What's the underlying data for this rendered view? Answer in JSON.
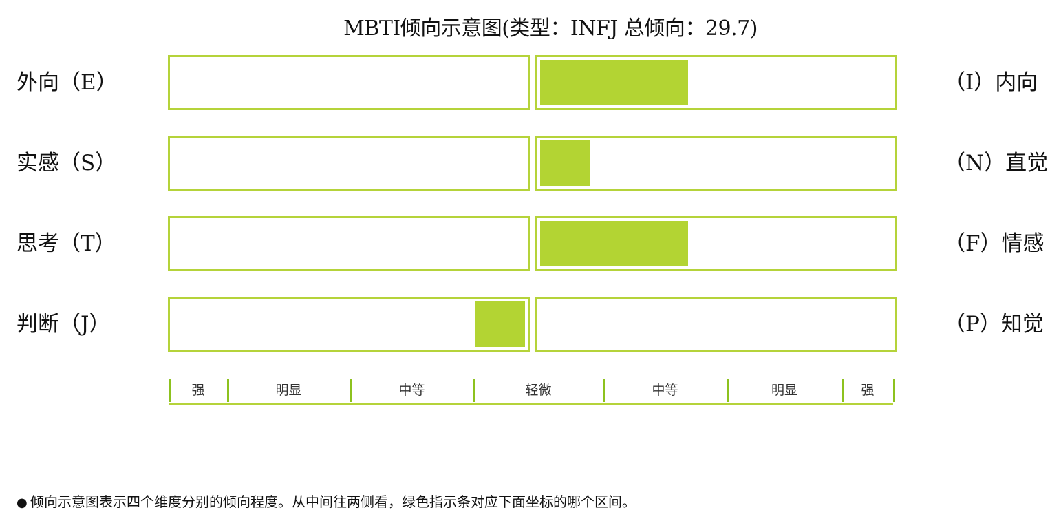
{
  "chart_data": {
    "type": "bar",
    "title": "MBTI倾向示意图(类型：INFJ 总倾向：29.7)",
    "dimensions": [
      {
        "left_label": "外向（E）",
        "right_label": "（I）内向",
        "side": "right",
        "value": 42
      },
      {
        "left_label": "实感（S）",
        "right_label": "（N）直觉",
        "side": "right",
        "value": 14
      },
      {
        "left_label": "思考（T）",
        "right_label": "（F）情感",
        "side": "right",
        "value": 42
      },
      {
        "left_label": "判断（J）",
        "right_label": "（P）知觉",
        "side": "left",
        "value": 14
      }
    ],
    "scale_max": 100,
    "scale_labels": [
      "强",
      "明显",
      "中等",
      "轻微",
      "中等",
      "明显",
      "强"
    ],
    "scale_ticks": [
      0,
      8,
      25,
      42,
      60,
      77,
      93,
      100
    ],
    "bar_color": "#b3d433",
    "border_color": "#b5d33a"
  },
  "note": "倾向示意图表示四个维度分别的倾向程度。从中间往两侧看，绿色指示条对应下面坐标的哪个区间。"
}
